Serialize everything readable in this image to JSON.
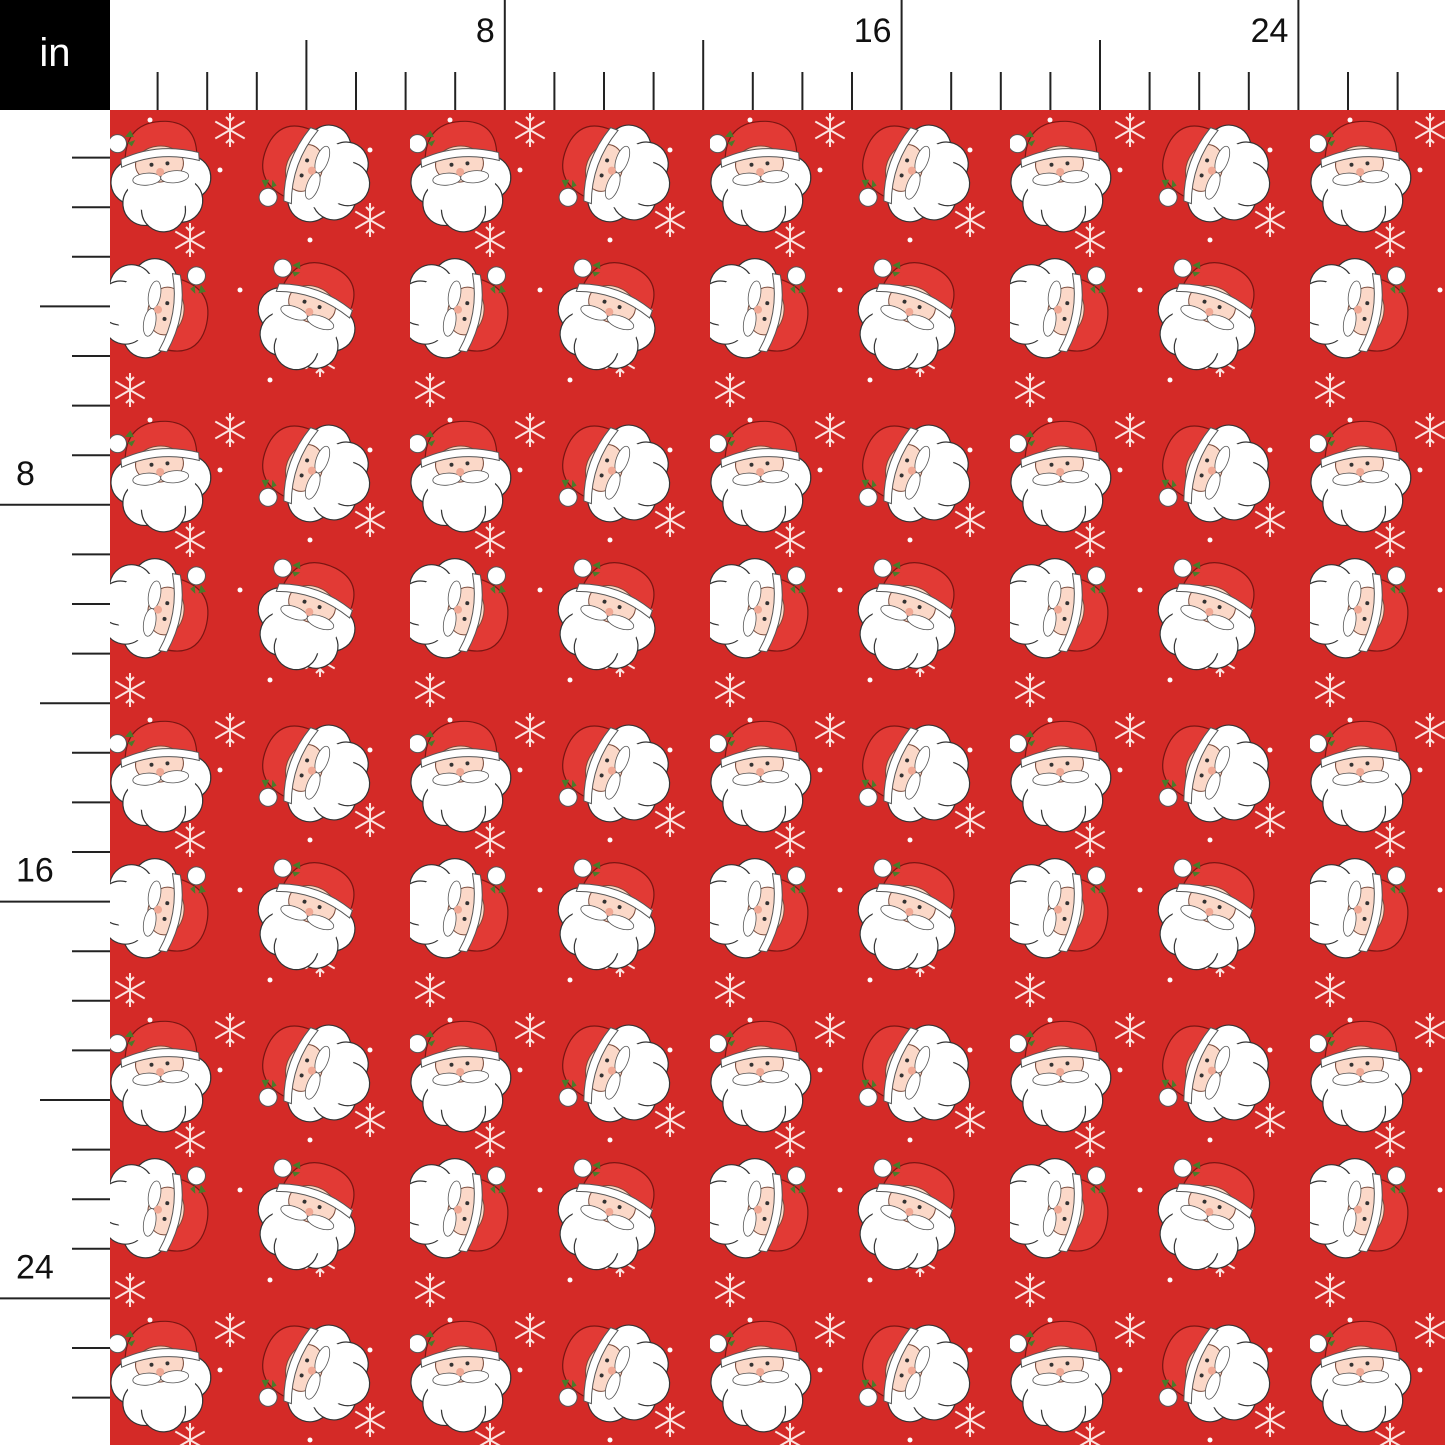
{
  "ruler": {
    "unit": "in",
    "top_labels": [
      "8",
      "16",
      "24"
    ],
    "left_labels": [
      "8",
      "16",
      "24"
    ]
  }
}
